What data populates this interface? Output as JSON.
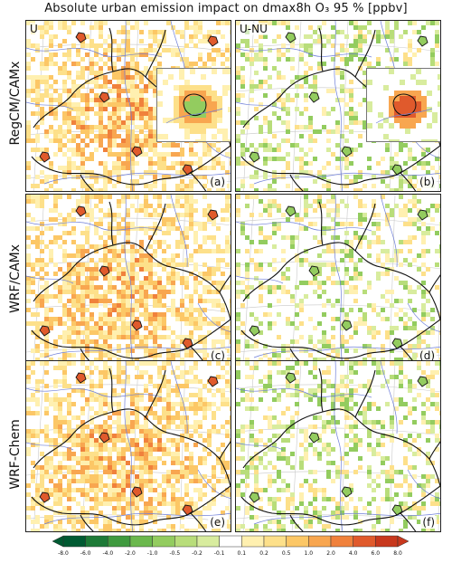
{
  "title": "Absolute urban emission impact on  dmax8h O₃ 95 % [ppbv]",
  "rows": [
    "RegCM/CAMx",
    "WRF/CAMx",
    "WRF-Chem"
  ],
  "columns": [
    "U",
    "U-NU"
  ],
  "panels": [
    {
      "id": "a",
      "letter": "(a)",
      "row": "RegCM/CAMx",
      "column": "U",
      "corner_label": "U",
      "has_inset": true
    },
    {
      "id": "b",
      "letter": "(b)",
      "row": "RegCM/CAMx",
      "column": "U-NU",
      "corner_label": "U-NU",
      "has_inset": true
    },
    {
      "id": "c",
      "letter": "(c)",
      "row": "WRF/CAMx",
      "column": "U",
      "corner_label": "",
      "has_inset": false
    },
    {
      "id": "d",
      "letter": "(d)",
      "row": "WRF/CAMx",
      "column": "U-NU",
      "corner_label": "",
      "has_inset": false
    },
    {
      "id": "e",
      "letter": "(e)",
      "row": "WRF-Chem",
      "column": "U",
      "corner_label": "",
      "has_inset": false
    },
    {
      "id": "f",
      "letter": "(f)",
      "row": "WRF-Chem",
      "column": "U-NU",
      "corner_label": "",
      "has_inset": false
    }
  ],
  "colorbar": {
    "ticks": [
      "-8.0",
      "-6.0",
      "-4.0",
      "-2.0",
      "-1.0",
      "-0.5",
      "-0.2",
      "-0.1",
      "0.1",
      "0.2",
      "0.5",
      "1.0",
      "2.0",
      "4.0",
      "6.0",
      "8.0"
    ],
    "colors": [
      "#005a32",
      "#1d7a37",
      "#3f9a3f",
      "#6bb84d",
      "#93cc5f",
      "#b8dd7a",
      "#d8ec9e",
      "#ffffff",
      "#fff0b0",
      "#fde08a",
      "#fcc766",
      "#f8a650",
      "#f0813c",
      "#e05a2c",
      "#c8381d"
    ],
    "extend": "both"
  },
  "colors": {
    "border": "#111111",
    "rivers": "#6f7fd8",
    "graticule": "#c8c8c8",
    "urban_outline": "#111111"
  }
}
